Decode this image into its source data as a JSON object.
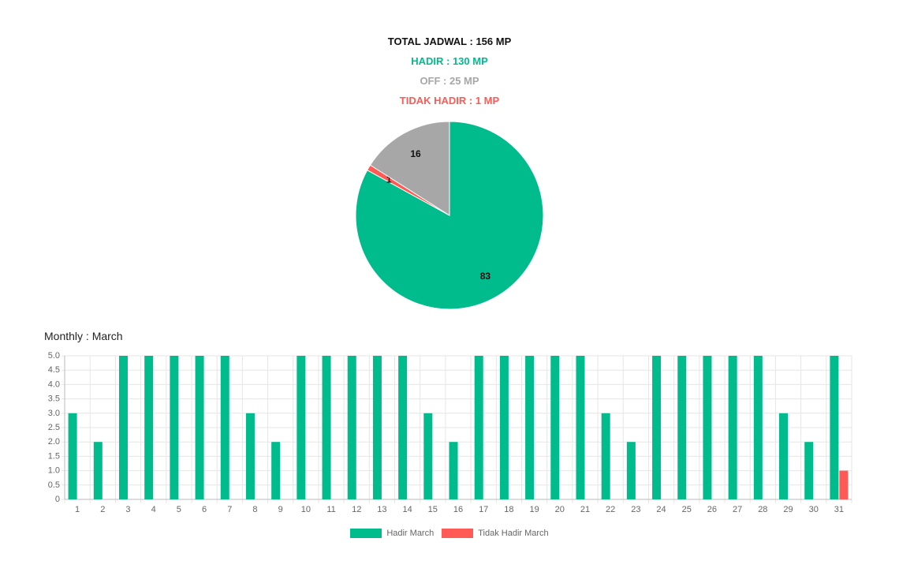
{
  "summary": {
    "total": "TOTAL JADWAL : 156 MP",
    "hadir": "HADIR : 130 MP",
    "off": "OFF : 25 MP",
    "tidak_hadir": "TIDAK HADIR : 1 MP"
  },
  "monthly_title": "Monthly : March",
  "colors": {
    "hadir": "#00bc8c",
    "off": "#a7a7a7",
    "tidak_hadir": "#ff5a55",
    "grid": "#e6e6e6",
    "tick": "#666666"
  },
  "chart_data": [
    {
      "type": "pie",
      "slices": [
        {
          "label": "Hadir",
          "value": 83,
          "color": "#00bc8c"
        },
        {
          "label": "Tidak Hadir",
          "value": 1,
          "color": "#ff5a55"
        },
        {
          "label": "Off",
          "value": 16,
          "color": "#a7a7a7"
        }
      ]
    },
    {
      "type": "bar",
      "categories": [
        "1",
        "2",
        "3",
        "4",
        "5",
        "6",
        "7",
        "8",
        "9",
        "10",
        "11",
        "12",
        "13",
        "14",
        "15",
        "16",
        "17",
        "18",
        "19",
        "20",
        "21",
        "22",
        "23",
        "24",
        "25",
        "26",
        "27",
        "28",
        "29",
        "30",
        "31"
      ],
      "series": [
        {
          "name": "Hadir March",
          "color": "#00bc8c",
          "values": [
            3,
            2,
            5,
            5,
            5,
            5,
            5,
            3,
            2,
            5,
            5,
            5,
            5,
            5,
            3,
            2,
            5,
            5,
            5,
            5,
            5,
            3,
            2,
            5,
            5,
            5,
            5,
            5,
            3,
            2,
            5
          ]
        },
        {
          "name": "Tidak Hadir March",
          "color": "#ff5a55",
          "values": [
            0,
            0,
            0,
            0,
            0,
            0,
            0,
            0,
            0,
            0,
            0,
            0,
            0,
            0,
            0,
            0,
            0,
            0,
            0,
            0,
            0,
            0,
            0,
            0,
            0,
            0,
            0,
            0,
            0,
            0,
            1
          ]
        }
      ],
      "yticks": [
        "0",
        "0.5",
        "1.0",
        "1.5",
        "2.0",
        "2.5",
        "3.0",
        "3.5",
        "4.0",
        "4.5",
        "5.0"
      ],
      "ylim": [
        0,
        5
      ],
      "grid": true,
      "legend": "bottom"
    }
  ]
}
